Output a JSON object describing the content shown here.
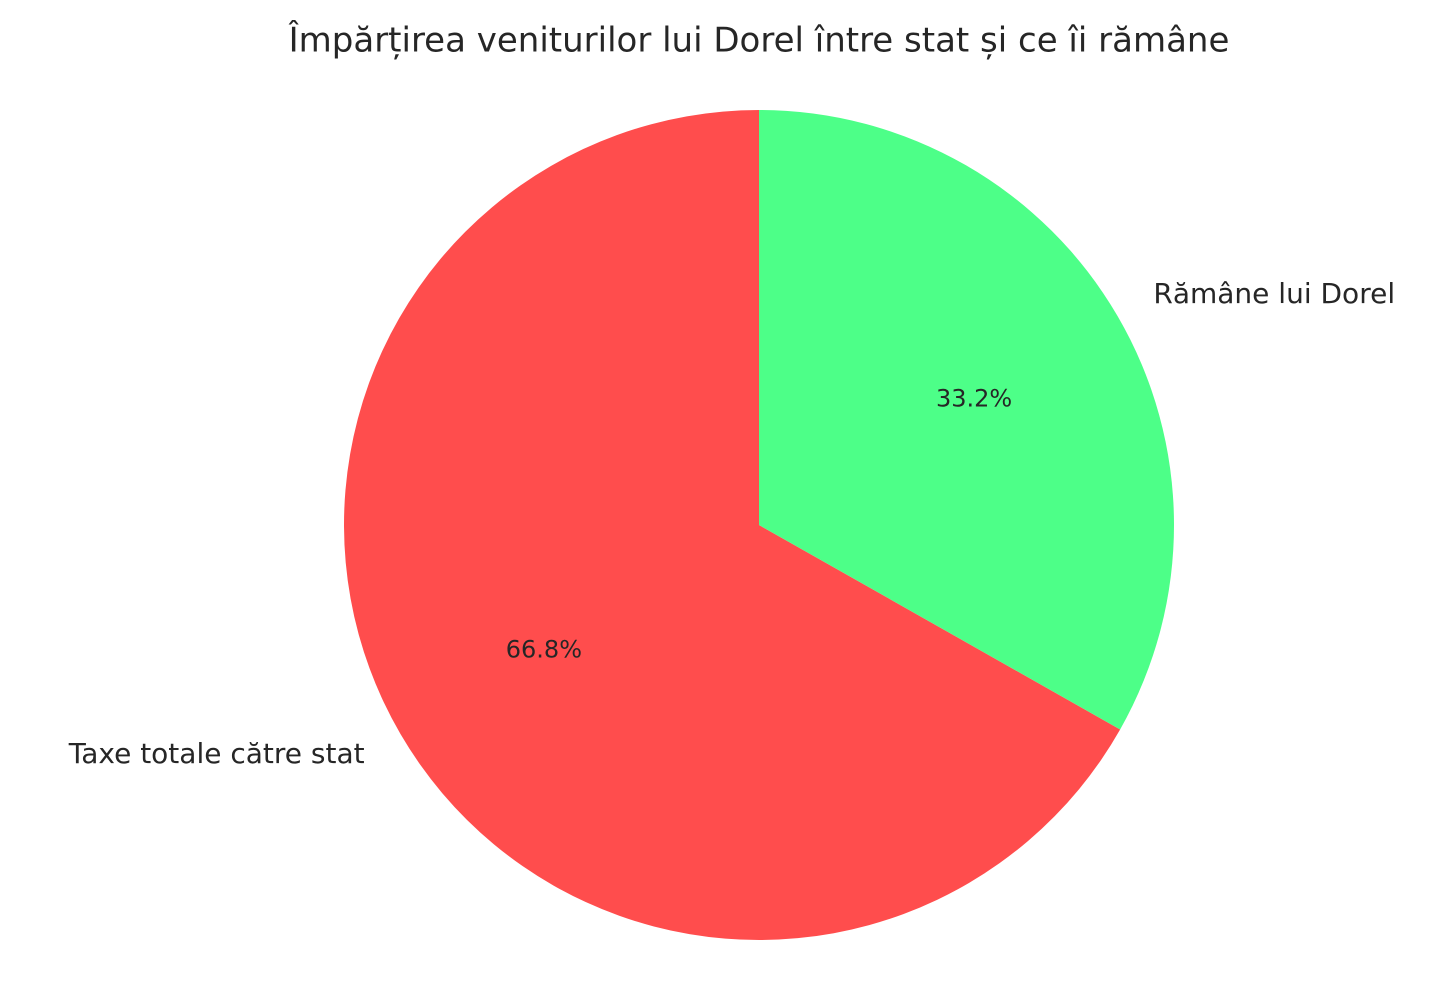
{
  "chart_data": {
    "type": "pie",
    "title": "Împărțirea veniturilor lui Dorel între stat și ce îi rămâne",
    "categories": [
      "Taxe totale către stat",
      "Rămâne lui Dorel"
    ],
    "values": [
      66.8,
      33.2
    ],
    "value_labels": [
      "66.8%",
      "33.2%"
    ],
    "colors": [
      "#ff4d4d",
      "#4dff88"
    ]
  }
}
